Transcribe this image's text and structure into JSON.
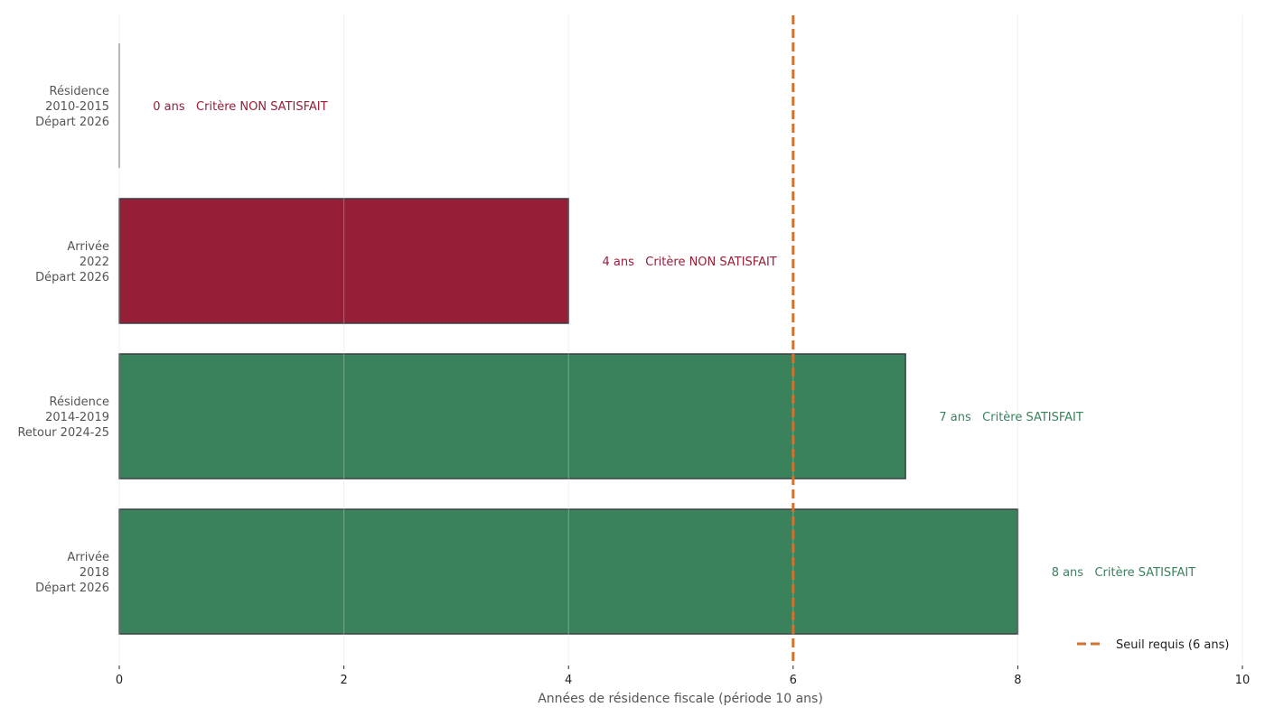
{
  "chart_data": {
    "type": "bar",
    "orientation": "horizontal",
    "title": "",
    "xlabel": "Années de résidence fiscale (période 10 ans)",
    "ylabel": "",
    "xlim": [
      0,
      10
    ],
    "xticks": [
      "0",
      "2",
      "4",
      "6",
      "8",
      "10"
    ],
    "grid": "vertical",
    "categories": [
      [
        "Résidence",
        "2010-2015",
        "Départ 2026"
      ],
      [
        "Arrivée",
        "2022",
        "Départ 2026"
      ],
      [
        "Résidence",
        "2014-2019",
        "Retour 2024-25"
      ],
      [
        "Arrivée",
        "2018",
        "Départ 2026"
      ]
    ],
    "values": [
      0,
      4,
      7,
      8
    ],
    "data_labels": [
      "0 ans   Critère NON SATISFAIT",
      "4 ans   Critère NON SATISFAIT",
      "7 ans   Critère SATISFAIT",
      "8 ans   Critère SATISFAIT"
    ],
    "status": [
      "fail",
      "fail",
      "pass",
      "pass"
    ],
    "colors": {
      "fail": "#961e36",
      "pass": "#3a825c",
      "threshold": "#d2722e"
    },
    "threshold": {
      "value": 6,
      "label": "Seuil requis (6 ans)",
      "style": "dashed"
    },
    "legend": {
      "placement": "bottom-right",
      "entries": [
        "Seuil requis (6 ans)"
      ]
    }
  }
}
